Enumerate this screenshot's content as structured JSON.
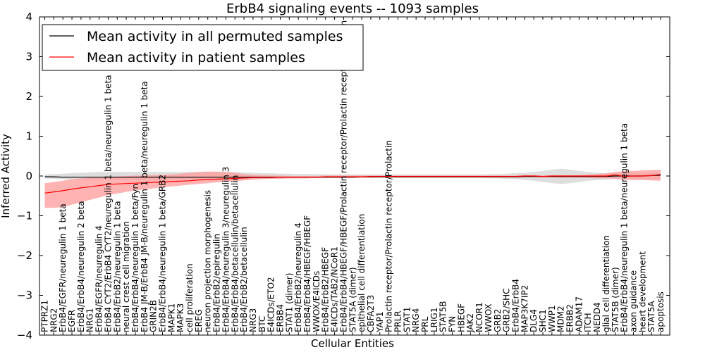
{
  "chart_data": {
    "type": "line",
    "title": "ErbB4 signaling events -- 1093 samples",
    "xlabel": "Cellular Entities",
    "ylabel": "Inferred Activity",
    "ylim": [
      -4,
      4
    ],
    "yticks": [
      "4",
      "3",
      "2",
      "1",
      "0",
      "−1",
      "−2",
      "−3",
      "−4"
    ],
    "legend": {
      "placement": "top-left",
      "entries": [
        "Mean activity in all permuted samples",
        "Mean activity in patient samples"
      ]
    },
    "colors": {
      "permuted": "#000000",
      "patient": "#ff0000",
      "patient_band": "#ff9999",
      "permuted_band": "#c8c8c8"
    },
    "categories": [
      "PTPRZ1",
      "NRG2",
      "ErbB4/EGFR/neuregulin 1 beta",
      "EGFR",
      "ErbB4/ErbB4/neuregulin 2 beta",
      "NRG1",
      "ErbB4/EGFR/neuregulin 4",
      "ErbB4 CYT2/ErbB4 CYT2/neuregulin 1 beta/neuregulin 1 beta",
      "ErbB4/ErbB2/neuregulin 1 beta",
      "neural crest cell migration",
      "ErbB4/ErbB4/neuregulin 1 beta/Fyn",
      "ErbB4 JM-B/ErbB4 JM-B/neuregulin 1 beta/neuregulin 1 beta",
      "GRIN2B",
      "ErbB4/ErbB4/neuregulin 1 beta/GRB2",
      "MAPK1",
      "MAPK3",
      "cell proliferation",
      "EREG",
      "neuron projection morphogenesis",
      "ErbB4/ErbB2/epiregulin",
      "ErbB4/ErbB4/neuregulin 3/neuregulin 3",
      "ErbB4/ErbB4/betacellulin/betacellulin",
      "ErbB4/ErbB2/betacellulin",
      "NRG3",
      "BTC",
      "E4ICDs/ETO2",
      "ERBB4",
      "STAT1 (dimer)",
      "ErbB4/ErbB2/neuregulin 4",
      "ErbB4/ErbB4/HBEGF/HBEGF",
      "WWOX/E4ICDs",
      "ErbB4/ErbB2/HBEGF",
      "E4ICDs/TAB2/NCoR1",
      "ErbB4/ErbB4/HBEGF/HBEGF/Prolactin receptor/Prolactin receptor/Prolactin",
      "STAT5A (dimer)",
      "epithelial cell differentiation",
      "CBFA2T3",
      "YAP1",
      "Prolactin receptor/Prolactin receptor/Prolactin",
      "PRLR",
      "STAT1",
      "NRG4",
      "PRL",
      "LRIG1",
      "STAT5B",
      "FYN",
      "HBEGF",
      "JAK2",
      "NCOR1",
      "WWOX",
      "GRB2",
      "GRB2/SHC",
      "ErbB4/ErbB4",
      "MAP3K7IP2",
      "DLG4",
      "SHC1",
      "WWP1",
      "MDM2",
      "ERBB2",
      "ADAM17",
      "ITCH",
      "NEDD4",
      "glial cell differentiation",
      "STAT5B (dimer)",
      "ErbB4/ErbB4/neuregulin 1 beta/neuregulin 1 beta",
      "axon guidance",
      "heart development",
      "STAT5A",
      "apoptosis"
    ],
    "series": [
      {
        "name": "Mean activity in all permuted samples",
        "values": [
          -0.02,
          -0.02,
          -0.03,
          -0.03,
          -0.03,
          -0.03,
          -0.03,
          -0.03,
          -0.03,
          -0.03,
          -0.03,
          -0.03,
          -0.03,
          -0.03,
          -0.03,
          -0.03,
          -0.03,
          -0.03,
          -0.03,
          -0.03,
          -0.03,
          -0.03,
          -0.03,
          -0.03,
          -0.03,
          -0.03,
          -0.03,
          -0.03,
          -0.03,
          -0.03,
          -0.03,
          -0.03,
          -0.03,
          -0.03,
          -0.03,
          -0.02,
          -0.02,
          -0.02,
          -0.02,
          -0.02,
          -0.02,
          -0.02,
          -0.02,
          -0.02,
          -0.02,
          -0.02,
          -0.02,
          -0.02,
          -0.02,
          -0.02,
          -0.02,
          -0.02,
          -0.02,
          -0.01,
          -0.01,
          -0.01,
          -0.01,
          -0.01,
          -0.01,
          -0.01,
          -0.01,
          -0.01,
          -0.01,
          0.0,
          0.0,
          0.0,
          0.0,
          0.01,
          0.02
        ]
      },
      {
        "name": "Mean activity in patient samples",
        "values": [
          -0.43,
          -0.4,
          -0.37,
          -0.33,
          -0.3,
          -0.27,
          -0.24,
          -0.21,
          -0.2,
          -0.19,
          -0.18,
          -0.17,
          -0.16,
          -0.15,
          -0.14,
          -0.13,
          -0.12,
          -0.1,
          -0.09,
          -0.08,
          -0.07,
          -0.06,
          -0.05,
          -0.04,
          -0.04,
          -0.04,
          -0.03,
          -0.03,
          -0.03,
          -0.03,
          -0.03,
          -0.02,
          -0.02,
          -0.02,
          -0.02,
          -0.02,
          -0.01,
          -0.01,
          -0.01,
          -0.01,
          -0.01,
          -0.01,
          -0.01,
          -0.01,
          -0.01,
          -0.01,
          -0.01,
          -0.01,
          -0.01,
          -0.01,
          -0.01,
          -0.01,
          -0.01,
          0.0,
          0.0,
          -0.01,
          0.0,
          0.0,
          0.0,
          0.0,
          0.0,
          0.0,
          0.0,
          0.03,
          -0.01,
          0.0,
          0.0,
          0.01,
          0.04
        ]
      }
    ],
    "patient_band": {
      "upper": [
        -0.18,
        -0.15,
        -0.12,
        -0.08,
        -0.06,
        -0.04,
        -0.03,
        -0.02,
        -0.01,
        0.0,
        0.01,
        0.01,
        0.02,
        0.03,
        0.04,
        0.06,
        0.08,
        0.1,
        0.11,
        0.11,
        0.1,
        0.08,
        0.05,
        0.03,
        0.02,
        0.01,
        0.01,
        0.0,
        0.0,
        0.0,
        0.0,
        0.01,
        0.01,
        0.01,
        0.01,
        0.01,
        0.01,
        0.01,
        0.01,
        0.01,
        0.01,
        0.01,
        0.01,
        0.01,
        0.01,
        0.01,
        0.01,
        0.01,
        0.01,
        0.01,
        0.01,
        0.01,
        0.01,
        0.02,
        0.02,
        0.01,
        0.02,
        0.02,
        0.02,
        0.02,
        0.03,
        0.05,
        0.07,
        0.1,
        0.12,
        0.13,
        0.14,
        0.15,
        0.16
      ],
      "lower": [
        -0.8,
        -0.8,
        -0.78,
        -0.72,
        -0.66,
        -0.6,
        -0.54,
        -0.48,
        -0.44,
        -0.4,
        -0.36,
        -0.34,
        -0.31,
        -0.28,
        -0.26,
        -0.24,
        -0.22,
        -0.2,
        -0.18,
        -0.16,
        -0.14,
        -0.13,
        -0.11,
        -0.09,
        -0.08,
        -0.07,
        -0.07,
        -0.06,
        -0.06,
        -0.06,
        -0.05,
        -0.05,
        -0.05,
        -0.05,
        -0.05,
        -0.04,
        -0.04,
        -0.03,
        -0.03,
        -0.03,
        -0.03,
        -0.03,
        -0.03,
        -0.03,
        -0.03,
        -0.03,
        -0.03,
        -0.03,
        -0.03,
        -0.03,
        -0.03,
        -0.03,
        -0.03,
        -0.03,
        -0.03,
        -0.04,
        -0.04,
        -0.05,
        -0.05,
        -0.05,
        -0.05,
        -0.06,
        -0.06,
        -0.07,
        -0.09,
        -0.1,
        -0.1,
        -0.11,
        -0.12
      ]
    },
    "permuted_band": {
      "upper": [
        0.04,
        0.05,
        0.06,
        0.07,
        0.08,
        0.09,
        0.1,
        0.1,
        0.1,
        0.1,
        0.1,
        0.1,
        0.1,
        0.1,
        0.1,
        0.1,
        0.1,
        0.1,
        0.1,
        0.1,
        0.1,
        0.1,
        0.09,
        0.08,
        0.07,
        0.07,
        0.06,
        0.06,
        0.05,
        0.05,
        0.05,
        0.04,
        0.04,
        0.04,
        0.04,
        0.04,
        0.04,
        0.04,
        0.04,
        0.04,
        0.04,
        0.04,
        0.04,
        0.04,
        0.04,
        0.04,
        0.04,
        0.04,
        0.04,
        0.05,
        0.05,
        0.06,
        0.07,
        0.08,
        0.1,
        0.13,
        0.16,
        0.18,
        0.16,
        0.13,
        0.1,
        0.08,
        0.07,
        0.07,
        0.08,
        0.08,
        0.08,
        0.08,
        0.08
      ],
      "lower": [
        -0.06,
        -0.07,
        -0.08,
        -0.09,
        -0.1,
        -0.1,
        -0.1,
        -0.1,
        -0.1,
        -0.1,
        -0.1,
        -0.1,
        -0.1,
        -0.1,
        -0.1,
        -0.1,
        -0.1,
        -0.1,
        -0.1,
        -0.1,
        -0.1,
        -0.1,
        -0.09,
        -0.08,
        -0.07,
        -0.07,
        -0.06,
        -0.06,
        -0.05,
        -0.05,
        -0.05,
        -0.05,
        -0.05,
        -0.05,
        -0.05,
        -0.05,
        -0.05,
        -0.05,
        -0.05,
        -0.05,
        -0.05,
        -0.05,
        -0.05,
        -0.05,
        -0.05,
        -0.05,
        -0.05,
        -0.05,
        -0.05,
        -0.06,
        -0.06,
        -0.07,
        -0.08,
        -0.1,
        -0.12,
        -0.15,
        -0.18,
        -0.2,
        -0.18,
        -0.15,
        -0.12,
        -0.1,
        -0.09,
        -0.08,
        -0.09,
        -0.09,
        -0.09,
        -0.09,
        -0.09
      ]
    }
  }
}
